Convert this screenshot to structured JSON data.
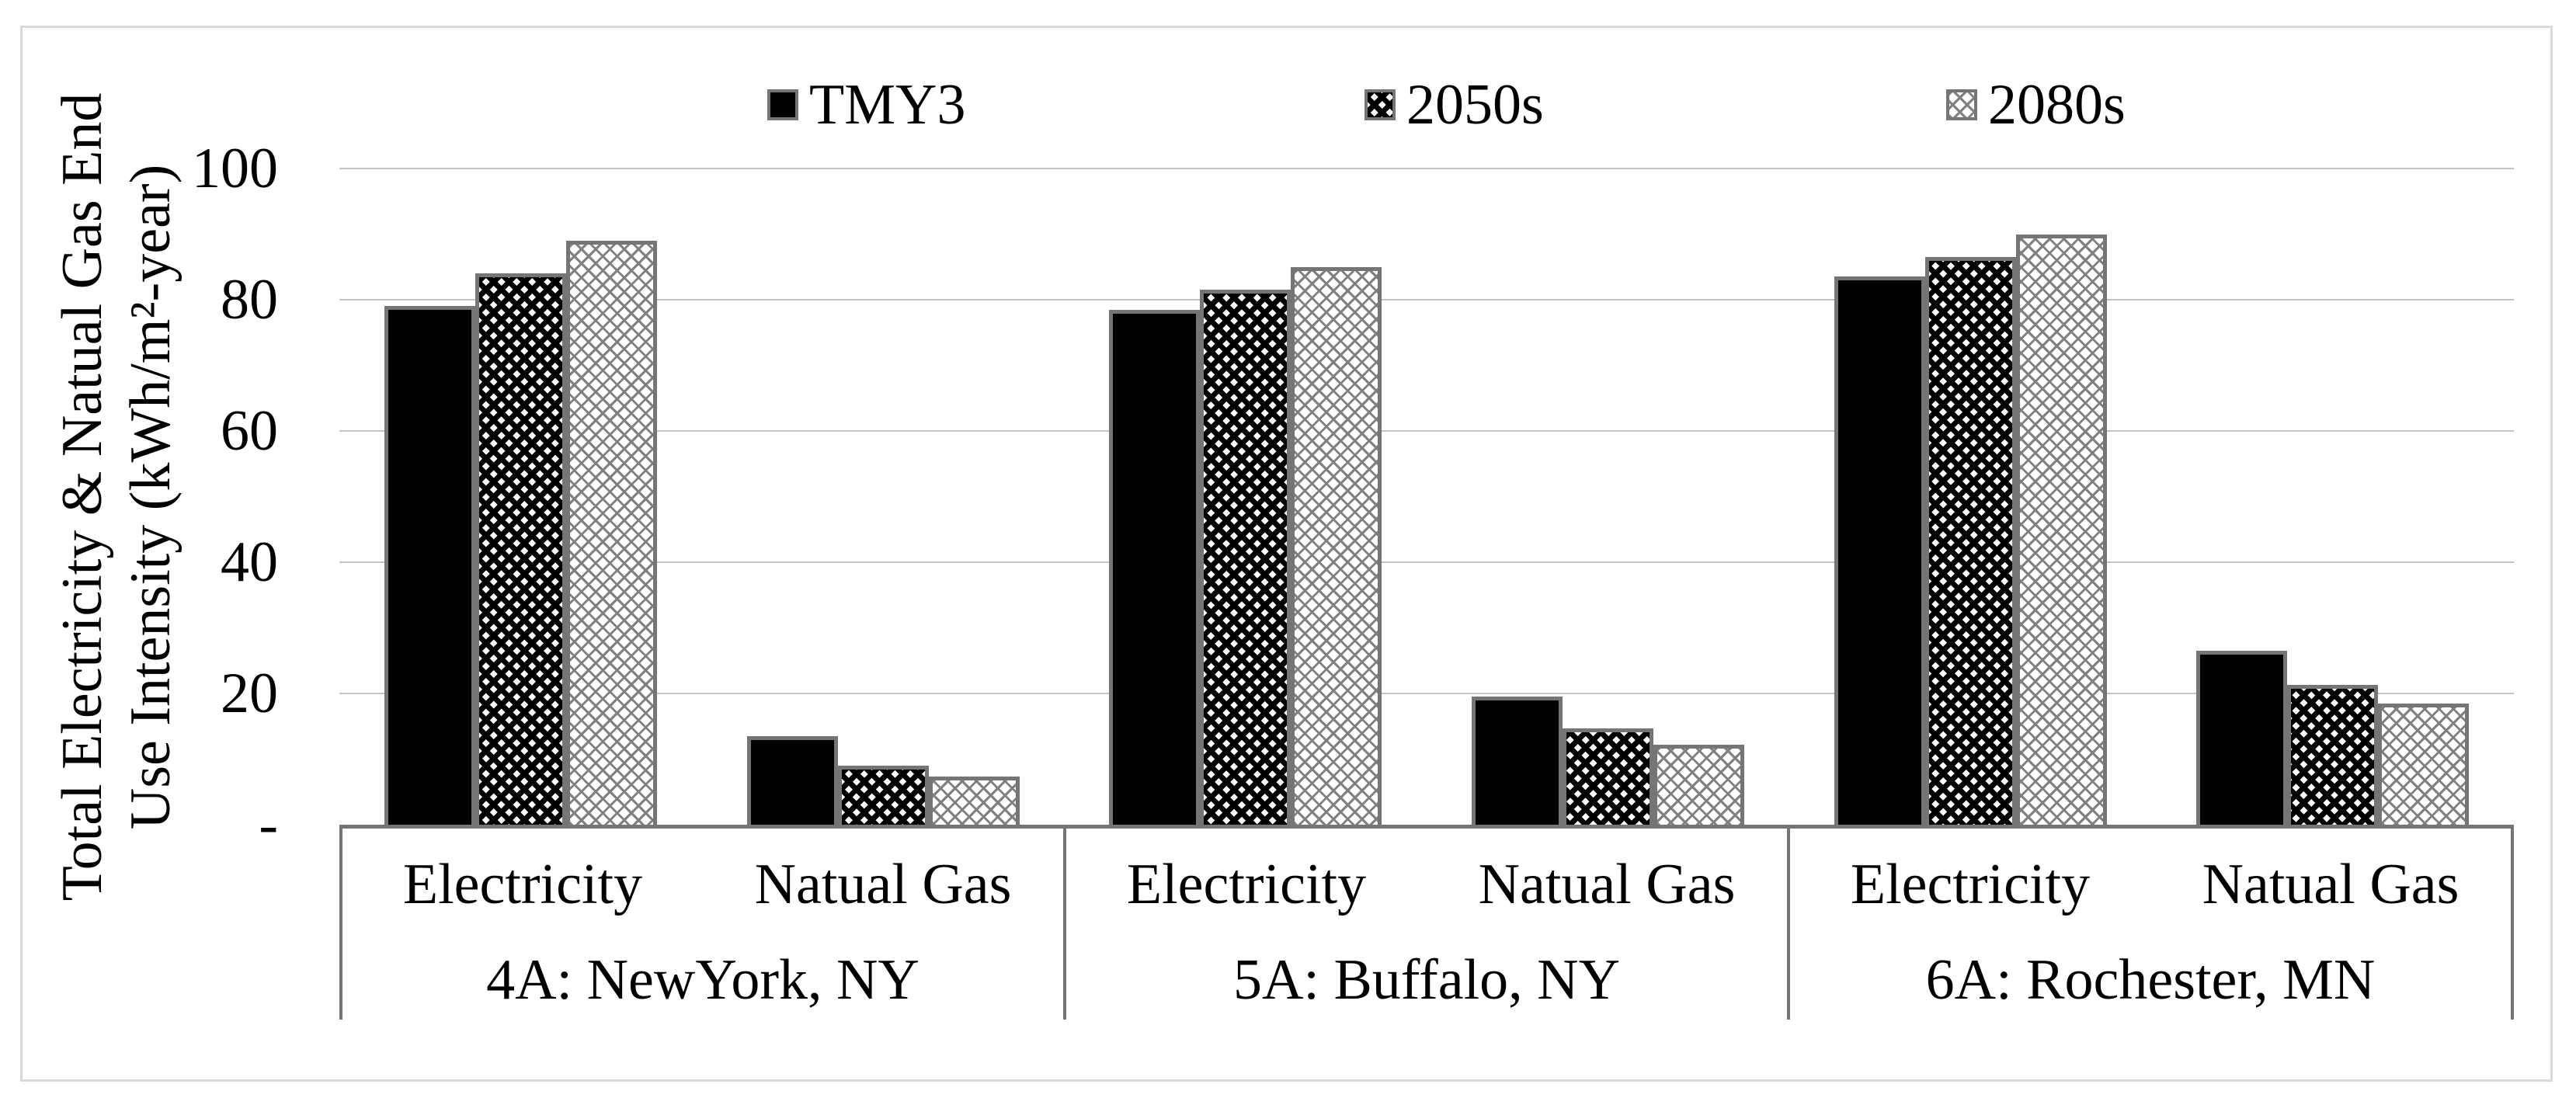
{
  "colors": {
    "frame_border": "#D9D9D9",
    "gridline": "#C3C3C3",
    "bar_outline": "#757575",
    "text": "#000000",
    "tmy3_fill": "#000000",
    "pattern_dark": "#000000",
    "pattern_light": "#808080"
  },
  "chart_data": {
    "type": "bar",
    "title": "",
    "ylabel_lines": [
      "Total Electricity  & Natual Gas End",
      "Use Intensity (kWh/m²-year)"
    ],
    "ylabel": "Total Electricity & Natual Gas End Use Intensity (kWh/m²-year)",
    "xlabel": "",
    "ylim": [
      0,
      100
    ],
    "y_major_step": 20,
    "y_ticks": [
      "100",
      "80",
      "60",
      "40",
      "20",
      "-"
    ],
    "grid": true,
    "legend_position": "top",
    "legend": [
      "TMY3",
      "2050s",
      "2080s"
    ],
    "groups": [
      {
        "label": "4A: NewYork, NY",
        "categories": [
          "Electricity",
          "Natual Gas"
        ]
      },
      {
        "label": "5A: Buffalo, NY",
        "categories": [
          "Electricity",
          "Natual Gas"
        ]
      },
      {
        "label": "6A: Rochester, MN",
        "categories": [
          "Electricity",
          "Natual Gas"
        ]
      }
    ],
    "category_order": [
      "4A Electricity",
      "4A Natual Gas",
      "5A Electricity",
      "5A Natual Gas",
      "6A Electricity",
      "6A Natual Gas"
    ],
    "series": [
      {
        "name": "TMY3",
        "pattern": "solid-black",
        "values": [
          79,
          13.5,
          78.5,
          19.5,
          83.5,
          26.5
        ]
      },
      {
        "name": "2050s",
        "pattern": "dark-diamond",
        "values": [
          84,
          9,
          81.5,
          14.7,
          86.5,
          21.3
        ]
      },
      {
        "name": "2080s",
        "pattern": "light-diamond",
        "values": [
          89,
          7.3,
          85,
          12.2,
          90,
          18.5
        ]
      }
    ],
    "units": "kWh/m2-year"
  }
}
